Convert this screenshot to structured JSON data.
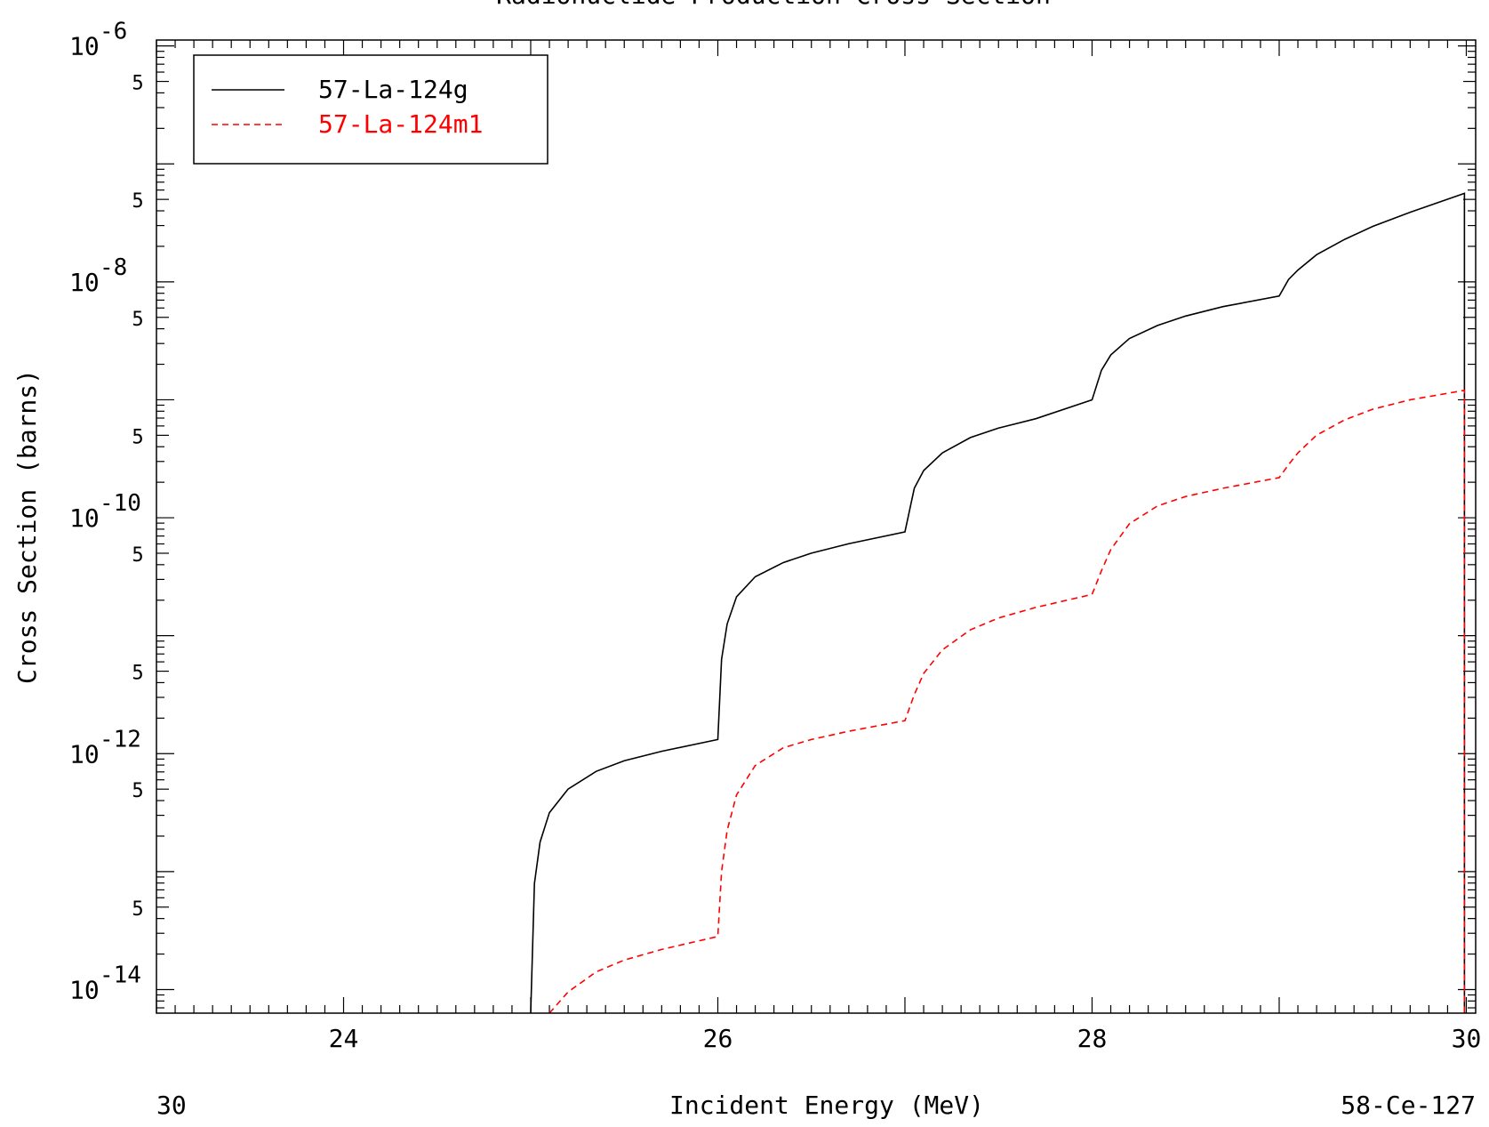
{
  "chart_data": {
    "type": "line",
    "title": "Radionuclide Production Cross Section",
    "xlabel": "Incident Energy (MeV)",
    "ylabel": "Cross Section (barns)",
    "footer_left": "30",
    "footer_right": "58-Ce-127",
    "xlim": [
      23,
      30.05
    ],
    "ylim_log10": [
      -14.2,
      -5.95
    ],
    "x_ticks": [
      24,
      26,
      28,
      30
    ],
    "x_tick_labels": [
      "24",
      "26",
      "28",
      "30"
    ],
    "y_decades": [
      -6,
      -8,
      -10,
      -12,
      -14
    ],
    "y_decade_labels": [
      {
        "base": "10",
        "exp": "-6"
      },
      {
        "base": "10",
        "exp": "-8"
      },
      {
        "base": "10",
        "exp": "-10"
      },
      {
        "base": "10",
        "exp": "-12"
      },
      {
        "base": "10",
        "exp": "-14"
      }
    ],
    "y_minor_label": "5",
    "grid": false,
    "legend_position": "top-left",
    "series": [
      {
        "name": "57-La-124g",
        "color": "#000000",
        "dash": "solid",
        "x": [
          25.0,
          25.02,
          25.05,
          25.1,
          25.2,
          25.35,
          25.5,
          25.7,
          26.0,
          26.02,
          26.05,
          26.1,
          26.2,
          26.35,
          26.5,
          26.7,
          27.0,
          27.05,
          27.1,
          27.2,
          27.35,
          27.5,
          27.7,
          28.0,
          28.05,
          28.1,
          28.2,
          28.35,
          28.5,
          28.7,
          29.0,
          29.05,
          29.1,
          29.2,
          29.35,
          29.5,
          29.7,
          29.99
        ],
        "y_log10": [
          -14.2,
          -13.1,
          -12.75,
          -12.5,
          -12.3,
          -12.15,
          -12.06,
          -11.98,
          -11.88,
          -11.2,
          -10.9,
          -10.67,
          -10.5,
          -10.38,
          -10.3,
          -10.22,
          -10.12,
          -9.75,
          -9.6,
          -9.45,
          -9.32,
          -9.24,
          -9.16,
          -9.0,
          -8.75,
          -8.62,
          -8.48,
          -8.37,
          -8.29,
          -8.21,
          -8.12,
          -7.98,
          -7.9,
          -7.77,
          -7.64,
          -7.53,
          -7.41,
          -7.25
        ]
      },
      {
        "name": "57-La-124m1",
        "color": "#ff0000",
        "dash": "dashed",
        "x": [
          25.1,
          25.2,
          25.35,
          25.5,
          25.7,
          26.0,
          26.02,
          26.05,
          26.1,
          26.2,
          26.35,
          26.5,
          26.7,
          27.0,
          27.05,
          27.1,
          27.2,
          27.35,
          27.5,
          27.7,
          28.0,
          28.05,
          28.1,
          28.2,
          28.35,
          28.5,
          28.7,
          29.0,
          29.05,
          29.1,
          29.2,
          29.35,
          29.5,
          29.7,
          29.99
        ],
        "y_log10": [
          -14.2,
          -14.02,
          -13.85,
          -13.75,
          -13.66,
          -13.55,
          -13.0,
          -12.65,
          -12.35,
          -12.1,
          -11.95,
          -11.88,
          -11.81,
          -11.72,
          -11.5,
          -11.32,
          -11.12,
          -10.95,
          -10.85,
          -10.76,
          -10.65,
          -10.45,
          -10.27,
          -10.05,
          -9.9,
          -9.82,
          -9.75,
          -9.66,
          -9.55,
          -9.45,
          -9.3,
          -9.17,
          -9.08,
          -9.0,
          -8.92
        ]
      }
    ]
  }
}
